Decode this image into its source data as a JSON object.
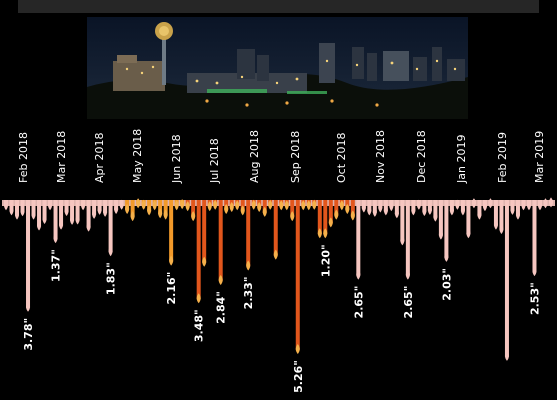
{
  "colors": {
    "background": "#000000",
    "winter": "#f6c6c0",
    "spring": "#f39a2a",
    "summer": "#e2561c",
    "fall": "#f6c6c0",
    "tip": "#f5b04a"
  },
  "photo": {
    "subject": "Night city skyline panorama with lit tower"
  },
  "chart_data": {
    "type": "bar",
    "title": "",
    "xlabel": "",
    "ylabel": "",
    "unit": "inches",
    "grid": false,
    "legend": "none",
    "ylim": [
      0,
      5.5
    ],
    "x_tick_labels": [
      "Feb 2018",
      "Mar 2018",
      "Apr 2018",
      "May 2018",
      "Jun 2018",
      "Jul 2018",
      "Aug 2018",
      "Sep 2018",
      "Oct 2018",
      "Nov 2018",
      "Dec 2018",
      "Jan 2019",
      "Feb 2019",
      "Mar 2019"
    ],
    "values": [
      0.22,
      0.4,
      0.55,
      0.43,
      3.78,
      0.55,
      0.93,
      0.7,
      0.22,
      1.37,
      0.9,
      0.42,
      0.73,
      0.72,
      0.22,
      0.97,
      0.52,
      0.38,
      0.45,
      1.83,
      0.35,
      0.2,
      0.35,
      0.6,
      0.15,
      0.2,
      0.4,
      0.22,
      0.5,
      0.55,
      2.16,
      0.22,
      0.18,
      0.25,
      0.6,
      3.48,
      2.2,
      0.25,
      0.2,
      2.84,
      0.35,
      0.28,
      0.22,
      0.4,
      2.33,
      0.2,
      0.28,
      0.45,
      0.2,
      1.95,
      0.22,
      0.22,
      0.6,
      5.26,
      0.22,
      0.22,
      0.2,
      1.2,
      1.2,
      0.82,
      0.55,
      0.22,
      0.35,
      0.58,
      2.65,
      0.3,
      0.4,
      0.45,
      0.3,
      0.4,
      0.25,
      0.5,
      1.45,
      2.65,
      0.4,
      0.2,
      0.42,
      0.38,
      0.62,
      1.25,
      2.03,
      0.4,
      0.2,
      0.4,
      1.2,
      0.15,
      0.55,
      0.25,
      0.15,
      0.9,
      1.05,
      5.5,
      0.38,
      0.55,
      0.22,
      0.22,
      2.53,
      0.22,
      0.15,
      0.12
    ],
    "data_labels": [
      {
        "index": 4,
        "text": "3.78\""
      },
      {
        "index": 9,
        "text": "1.37\""
      },
      {
        "index": 19,
        "text": "1.83\""
      },
      {
        "index": 30,
        "text": "2.16\""
      },
      {
        "index": 35,
        "text": "3.48\""
      },
      {
        "index": 39,
        "text": "2.84\""
      },
      {
        "index": 44,
        "text": "2.33\""
      },
      {
        "index": 53,
        "text": "5.26\""
      },
      {
        "index": 58,
        "text": "1.20\""
      },
      {
        "index": 64,
        "text": "2.65\""
      },
      {
        "index": 73,
        "text": "2.65\""
      },
      {
        "index": 80,
        "text": "2.03\""
      },
      {
        "index": 96,
        "text": "2.53\""
      }
    ]
  }
}
